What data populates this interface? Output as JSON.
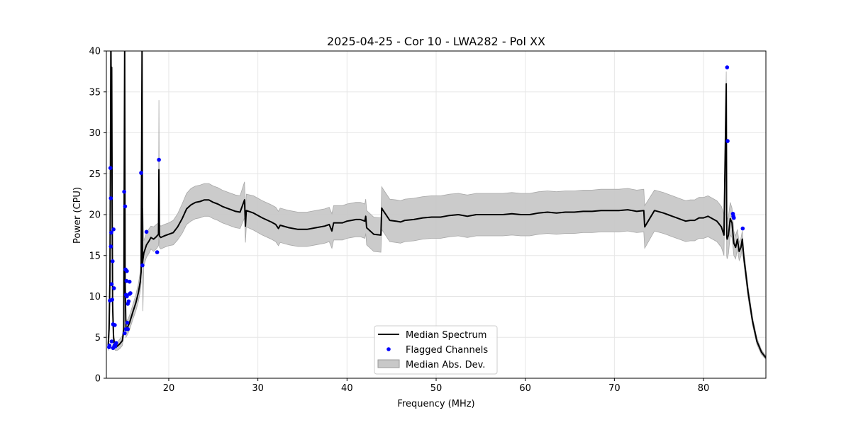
{
  "chart_data": {
    "type": "line",
    "title": "2025-04-25 - Cor 10 - LWA282 - Pol XX",
    "xlabel": "Frequency (MHz)",
    "ylabel": "Power (CPU)",
    "xlim": [
      13,
      87
    ],
    "ylim": [
      0,
      40
    ],
    "xticks": [
      20,
      30,
      40,
      50,
      60,
      70,
      80
    ],
    "xtick_labels": [
      "20",
      "30",
      "40",
      "50",
      "60",
      "70",
      "80"
    ],
    "yticks": [
      0,
      5,
      10,
      15,
      20,
      25,
      30,
      35,
      40
    ],
    "ytick_labels": [
      "0",
      "5",
      "10",
      "15",
      "20",
      "25",
      "30",
      "35",
      "40"
    ],
    "grid": true,
    "legend_position": "lower-center",
    "series": [
      {
        "name": "Median Spectrum",
        "kind": "line",
        "color": "#000000",
        "x": [
          13.2,
          13.3,
          13.4,
          13.45,
          13.5,
          13.55,
          13.6,
          13.65,
          13.7,
          13.8,
          13.9,
          14.0,
          14.2,
          14.5,
          14.8,
          14.95,
          15.0,
          15.05,
          15.1,
          15.2,
          15.4,
          15.6,
          15.8,
          16.0,
          16.3,
          16.6,
          16.8,
          16.9,
          17.0,
          17.05,
          17.1,
          17.2,
          17.5,
          17.8,
          18.0,
          18.3,
          18.6,
          18.85,
          18.9,
          18.95,
          19.1,
          19.5,
          20.0,
          20.5,
          21.0,
          21.5,
          22.0,
          22.5,
          23.0,
          23.5,
          24.0,
          24.5,
          25.0,
          25.5,
          26.0,
          26.5,
          27.0,
          27.5,
          28.0,
          28.5,
          28.6,
          28.7,
          29.5,
          30.5,
          31.5,
          32.0,
          32.3,
          32.5,
          33.5,
          34.5,
          35.5,
          36.5,
          37.5,
          38.0,
          38.3,
          38.5,
          39.5,
          40.0,
          40.5,
          41.0,
          41.5,
          42.0,
          42.1,
          42.2,
          43.0,
          43.8,
          43.9,
          44.0,
          44.8,
          45.5,
          46.0,
          46.5,
          47.5,
          48.5,
          49.5,
          50.5,
          51.0,
          51.5,
          52.5,
          53.5,
          54.5,
          55.5,
          56.5,
          57.5,
          58.5,
          59.5,
          60.5,
          61.5,
          62.5,
          63.5,
          64.5,
          65.5,
          66.5,
          67.5,
          68.5,
          69.5,
          70.5,
          71.5,
          72.5,
          73.3,
          73.4,
          74.5,
          75.5,
          76.0,
          76.5,
          77.0,
          77.5,
          78.0,
          78.5,
          79.0,
          79.5,
          80.0,
          80.5,
          81.0,
          81.5,
          82.0,
          82.3,
          82.55,
          82.6,
          82.65,
          82.8,
          83.0,
          83.2,
          83.4,
          83.6,
          83.8,
          84.0,
          84.2,
          84.35,
          84.5,
          85.0,
          85.5,
          86.0,
          86.5,
          87.0
        ],
        "y": [
          4.0,
          6.0,
          12.0,
          25.0,
          40.0,
          30.0,
          38.0,
          20.0,
          9.0,
          5.0,
          4.2,
          3.9,
          3.9,
          4.2,
          4.6,
          6.0,
          22.0,
          40.0,
          12.0,
          6.0,
          6.3,
          6.8,
          7.5,
          8.2,
          9.2,
          10.5,
          11.8,
          13.0,
          40.0,
          14.0,
          14.5,
          15.3,
          16.3,
          16.8,
          17.2,
          17.0,
          17.3,
          17.6,
          25.5,
          17.4,
          17.2,
          17.4,
          17.6,
          17.8,
          18.5,
          19.5,
          20.7,
          21.2,
          21.5,
          21.6,
          21.8,
          21.8,
          21.5,
          21.3,
          21.0,
          20.8,
          20.6,
          20.4,
          20.3,
          21.8,
          18.6,
          20.5,
          20.2,
          19.6,
          19.1,
          18.8,
          18.3,
          18.7,
          18.4,
          18.2,
          18.2,
          18.4,
          18.6,
          18.8,
          18.0,
          19.0,
          19.0,
          19.2,
          19.3,
          19.4,
          19.4,
          19.2,
          19.8,
          18.4,
          17.6,
          17.5,
          20.8,
          20.6,
          19.3,
          19.2,
          19.1,
          19.3,
          19.4,
          19.6,
          19.7,
          19.7,
          19.8,
          19.9,
          20.0,
          19.8,
          20.0,
          20.0,
          20.0,
          20.0,
          20.1,
          20.0,
          20.0,
          20.2,
          20.3,
          20.2,
          20.3,
          20.3,
          20.4,
          20.4,
          20.5,
          20.5,
          20.5,
          20.6,
          20.4,
          20.5,
          18.5,
          20.5,
          20.2,
          20.0,
          19.8,
          19.6,
          19.4,
          19.2,
          19.3,
          19.3,
          19.6,
          19.6,
          19.8,
          19.5,
          19.2,
          18.5,
          17.5,
          36.0,
          17.5,
          17.0,
          17.5,
          19.5,
          19.0,
          16.5,
          16.0,
          17.0,
          15.5,
          16.0,
          17.0,
          15.0,
          10.5,
          7.0,
          4.5,
          3.2,
          2.5
        ],
        "mad_upper": [
          4.6,
          7.5,
          14.5,
          29.0,
          40.0,
          34.0,
          40.0,
          24.0,
          10.5,
          5.8,
          4.8,
          4.4,
          4.4,
          4.8,
          5.2,
          6.8,
          25.0,
          40.0,
          14.0,
          7.0,
          7.2,
          7.7,
          8.4,
          9.1,
          10.2,
          11.6,
          13.0,
          14.3,
          40.0,
          15.4,
          20.8,
          16.8,
          17.8,
          18.3,
          18.6,
          18.5,
          18.8,
          19.0,
          34.0,
          18.8,
          18.6,
          18.8,
          19.0,
          19.3,
          20.1,
          21.3,
          22.6,
          23.2,
          23.5,
          23.6,
          23.8,
          23.8,
          23.5,
          23.3,
          23.0,
          22.8,
          22.6,
          22.4,
          22.3,
          24.0,
          20.6,
          22.5,
          22.3,
          21.7,
          21.2,
          20.9,
          20.4,
          20.8,
          20.5,
          20.3,
          20.3,
          20.5,
          20.7,
          20.9,
          20.1,
          21.1,
          21.1,
          21.3,
          21.4,
          21.5,
          21.5,
          21.3,
          21.9,
          20.5,
          19.7,
          19.6,
          23.4,
          23.2,
          21.9,
          21.8,
          21.7,
          21.9,
          22.0,
          22.2,
          22.3,
          22.3,
          22.4,
          22.5,
          22.6,
          22.4,
          22.6,
          22.6,
          22.6,
          22.6,
          22.7,
          22.6,
          22.6,
          22.8,
          22.9,
          22.8,
          22.9,
          22.9,
          23.0,
          23.0,
          23.1,
          23.1,
          23.1,
          23.2,
          23.0,
          23.1,
          21.1,
          23.0,
          22.7,
          22.5,
          22.3,
          22.1,
          21.9,
          21.7,
          21.8,
          21.8,
          22.1,
          22.1,
          22.3,
          22.0,
          21.7,
          21.0,
          20.0,
          37.5,
          20.0,
          19.4,
          19.8,
          21.5,
          20.8,
          18.0,
          17.4,
          18.2,
          16.6,
          17.1,
          18.0,
          15.8,
          11.2,
          7.5,
          4.9,
          3.5,
          2.7
        ],
        "mad_lower": [
          3.4,
          4.5,
          9.5,
          21.0,
          35.0,
          26.0,
          34.0,
          16.0,
          7.5,
          4.2,
          3.6,
          3.4,
          3.4,
          3.6,
          4.0,
          5.2,
          19.0,
          35.0,
          10.0,
          5.0,
          5.4,
          5.9,
          6.6,
          7.3,
          8.2,
          9.4,
          10.6,
          11.7,
          34.0,
          12.6,
          8.2,
          13.8,
          14.8,
          15.3,
          15.8,
          15.5,
          15.8,
          16.2,
          17.5,
          16.0,
          15.8,
          16.0,
          16.2,
          16.3,
          16.9,
          17.7,
          18.8,
          19.2,
          19.5,
          19.6,
          19.8,
          19.8,
          19.5,
          19.3,
          19.0,
          18.8,
          18.6,
          18.4,
          18.3,
          19.6,
          16.6,
          18.5,
          18.1,
          17.5,
          17.0,
          16.7,
          16.2,
          16.6,
          16.3,
          16.1,
          16.1,
          16.3,
          16.5,
          16.7,
          15.9,
          16.9,
          16.9,
          17.1,
          17.2,
          17.3,
          17.3,
          17.1,
          17.7,
          16.3,
          15.5,
          15.4,
          18.2,
          18.0,
          16.7,
          16.6,
          16.5,
          16.7,
          16.8,
          17.0,
          17.1,
          17.1,
          17.2,
          17.3,
          17.4,
          17.2,
          17.4,
          17.4,
          17.4,
          17.4,
          17.5,
          17.4,
          17.4,
          17.6,
          17.7,
          17.6,
          17.7,
          17.7,
          17.8,
          17.8,
          17.9,
          17.9,
          17.9,
          18.0,
          17.8,
          17.9,
          15.9,
          18.0,
          17.7,
          17.5,
          17.3,
          17.1,
          16.9,
          16.7,
          16.8,
          16.8,
          17.1,
          17.1,
          17.3,
          17.0,
          16.7,
          16.0,
          15.0,
          34.5,
          15.0,
          14.6,
          15.2,
          17.5,
          17.2,
          15.0,
          14.6,
          15.8,
          14.4,
          14.9,
          16.0,
          14.2,
          9.8,
          6.5,
          4.1,
          2.9,
          2.3
        ]
      },
      {
        "name": "Flagged Channels",
        "kind": "scatter",
        "color": "#0000ff",
        "x": [
          13.3,
          13.35,
          13.4,
          13.45,
          13.5,
          13.5,
          13.55,
          13.6,
          13.6,
          13.65,
          13.7,
          13.75,
          13.75,
          13.8,
          13.85,
          13.9,
          13.95,
          14.0,
          14.05,
          14.1,
          15.0,
          15.05,
          15.1,
          15.15,
          15.2,
          15.2,
          15.25,
          15.3,
          15.3,
          15.35,
          15.4,
          15.4,
          15.5,
          15.6,
          15.6,
          15.7,
          16.9,
          17.05,
          17.5,
          18.7,
          18.9,
          82.65,
          82.7,
          83.3,
          83.35,
          83.4,
          84.4
        ],
        "y": [
          3.8,
          4.0,
          9.5,
          25.7,
          22.0,
          16.1,
          17.8,
          11.5,
          4.5,
          9.6,
          14.3,
          3.7,
          6.6,
          18.2,
          11.0,
          4.0,
          6.5,
          3.9,
          4.2,
          4.3,
          22.8,
          5.5,
          21.0,
          13.3,
          10.2,
          6.0,
          11.9,
          13.1,
          10.0,
          6.8,
          9.1,
          6.0,
          9.4,
          11.8,
          10.3,
          10.4,
          25.1,
          13.8,
          17.9,
          15.4,
          26.7,
          38.0,
          29.0,
          20.1,
          19.8,
          19.6,
          18.3
        ]
      },
      {
        "name": "Median Abs. Dev.",
        "kind": "band",
        "color": "#c8c8c8"
      }
    ]
  }
}
